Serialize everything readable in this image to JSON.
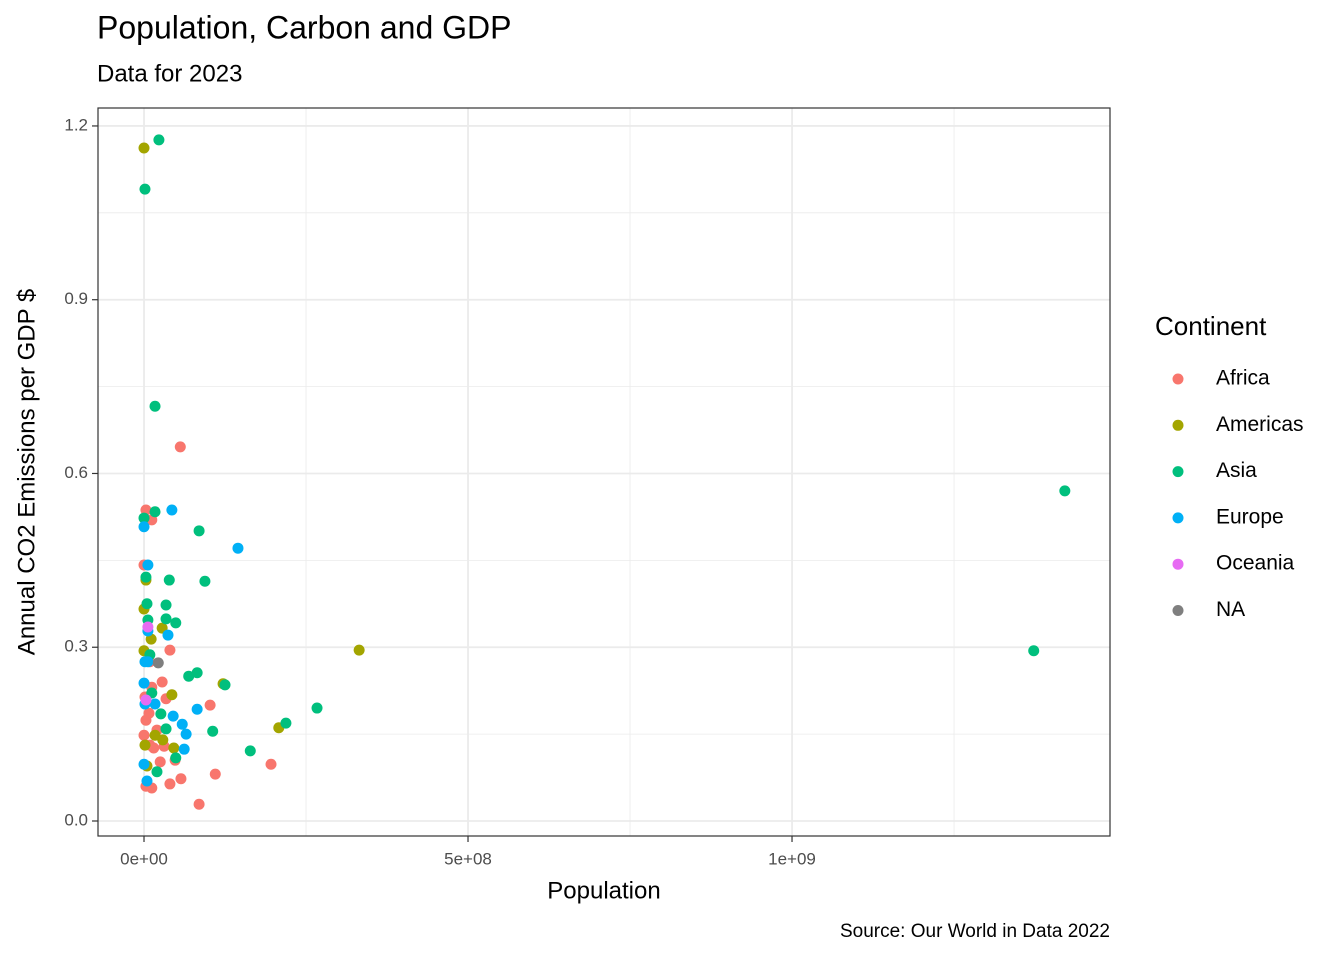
{
  "chart_data": {
    "type": "scatter",
    "title": "Population, Carbon and GDP",
    "subtitle": "Data for 2023",
    "caption": "Source: Our World in Data 2022",
    "x_label": "Population",
    "y_label": "Annual CO2 Emissions per GDP $",
    "legend_title": "Continent",
    "legend_position": "right",
    "grid": true,
    "xlim": [
      -71000000,
      1490700000
    ],
    "ylim": [
      -0.0259,
      1.231
    ],
    "xticks": [
      {
        "value": 0,
        "label": "0e+00"
      },
      {
        "value": 500000000,
        "label": "5e+08"
      },
      {
        "value": 1000000000,
        "label": "1e+09"
      }
    ],
    "yticks": [
      {
        "value": 0,
        "label": "0.0"
      },
      0.3,
      0.6,
      0.9,
      1.2
    ],
    "series": [
      {
        "name": "Africa",
        "color": "#F8766D",
        "x": [
          56000000,
          3000000,
          12000000,
          0,
          40000000,
          28000000,
          102000000,
          34000000,
          196000000,
          110000000,
          85000000,
          57000000,
          40000000,
          12000000,
          3000000,
          25000000,
          48000000,
          9000000,
          20000000,
          3000000,
          7700000,
          12000000,
          9000000,
          1500000,
          15000000,
          31000000,
          0
        ],
        "values": [
          0.646,
          0.537,
          0.52,
          0.442,
          0.295,
          0.24,
          0.2,
          0.211,
          0.098,
          0.081,
          0.029,
          0.073,
          0.064,
          0.057,
          0.06,
          0.102,
          0.105,
          0.131,
          0.157,
          0.174,
          0.186,
          0.231,
          0.275,
          0.214,
          0.126,
          0.129,
          0.148
        ]
      },
      {
        "name": "Americas",
        "color": "#A3A500",
        "x": [
          0,
          332000000,
          3000000,
          0,
          11000000,
          28000000,
          0,
          122000000,
          208000000,
          43000000,
          46000000,
          4600000,
          17000000,
          29000000,
          1500000
        ],
        "values": [
          1.162,
          0.295,
          0.416,
          0.366,
          0.314,
          0.333,
          0.294,
          0.237,
          0.161,
          0.218,
          0.126,
          0.095,
          0.148,
          0.14,
          0.131
        ]
      },
      {
        "name": "Asia",
        "color": "#00BF7D",
        "x": [
          23000000,
          1500000,
          17000000,
          17000000,
          85000000,
          1421000000,
          1373000000,
          39000000,
          94000000,
          3000000,
          4600000,
          34000000,
          6000000,
          49000000,
          34000000,
          69000000,
          82000000,
          125000000,
          267000000,
          219000000,
          106000000,
          164000000,
          49000000,
          26000000,
          34000000,
          20000000,
          12000000,
          0,
          9000000
        ],
        "values": [
          1.176,
          1.091,
          0.716,
          0.534,
          0.501,
          0.57,
          0.294,
          0.416,
          0.414,
          0.421,
          0.375,
          0.373,
          0.347,
          0.342,
          0.349,
          0.25,
          0.256,
          0.235,
          0.195,
          0.169,
          0.155,
          0.121,
          0.109,
          0.185,
          0.159,
          0.085,
          0.221,
          0.523,
          0.287
        ]
      },
      {
        "name": "Europe",
        "color": "#00B0F6",
        "x": [
          43000000,
          145000000,
          0,
          6000000,
          37000000,
          6000000,
          1500000,
          0,
          1500000,
          82000000,
          45000000,
          59000000,
          65000000,
          62000000,
          0,
          4600000,
          17000000,
          6000000
        ],
        "values": [
          0.537,
          0.471,
          0.508,
          0.442,
          0.321,
          0.328,
          0.275,
          0.238,
          0.202,
          0.193,
          0.181,
          0.167,
          0.15,
          0.124,
          0.098,
          0.069,
          0.202,
          0.275
        ]
      },
      {
        "name": "Oceania",
        "color": "#E76BF3",
        "x": [
          3000000,
          6000000
        ],
        "values": [
          0.209,
          0.335
        ]
      },
      {
        "name": "NA",
        "color": "#7F7F7F",
        "x": [
          22000000
        ],
        "values": [
          0.273
        ]
      }
    ]
  }
}
